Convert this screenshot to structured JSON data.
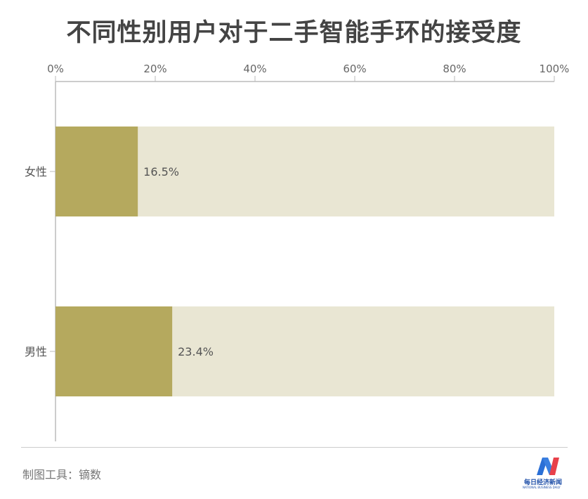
{
  "chart_data": {
    "type": "bar",
    "orientation": "horizontal",
    "stacked_background": true,
    "title": "不同性别用户对于二手智能手环的接受度",
    "categories": [
      "女性",
      "男性"
    ],
    "values": [
      16.5,
      23.4
    ],
    "data_labels": [
      "16.5%",
      "23.4%"
    ],
    "xlim": [
      0,
      100
    ],
    "xticks": [
      "0%",
      "20%",
      "40%",
      "60%",
      "80%",
      "100%"
    ],
    "xtick_values": [
      0,
      20,
      40,
      60,
      80,
      100
    ],
    "xaxis_position": "top",
    "grid": false,
    "colors": {
      "bar": "#b5a95e",
      "background_bar": "#e9e6d3",
      "axis": "#bbbbbb",
      "text": "#555555"
    }
  },
  "footer": {
    "source": "制图工具：镝数"
  },
  "logo": {
    "cn": "每日经济新闻",
    "en": "NATIONAL BUSINESS DAILY"
  }
}
